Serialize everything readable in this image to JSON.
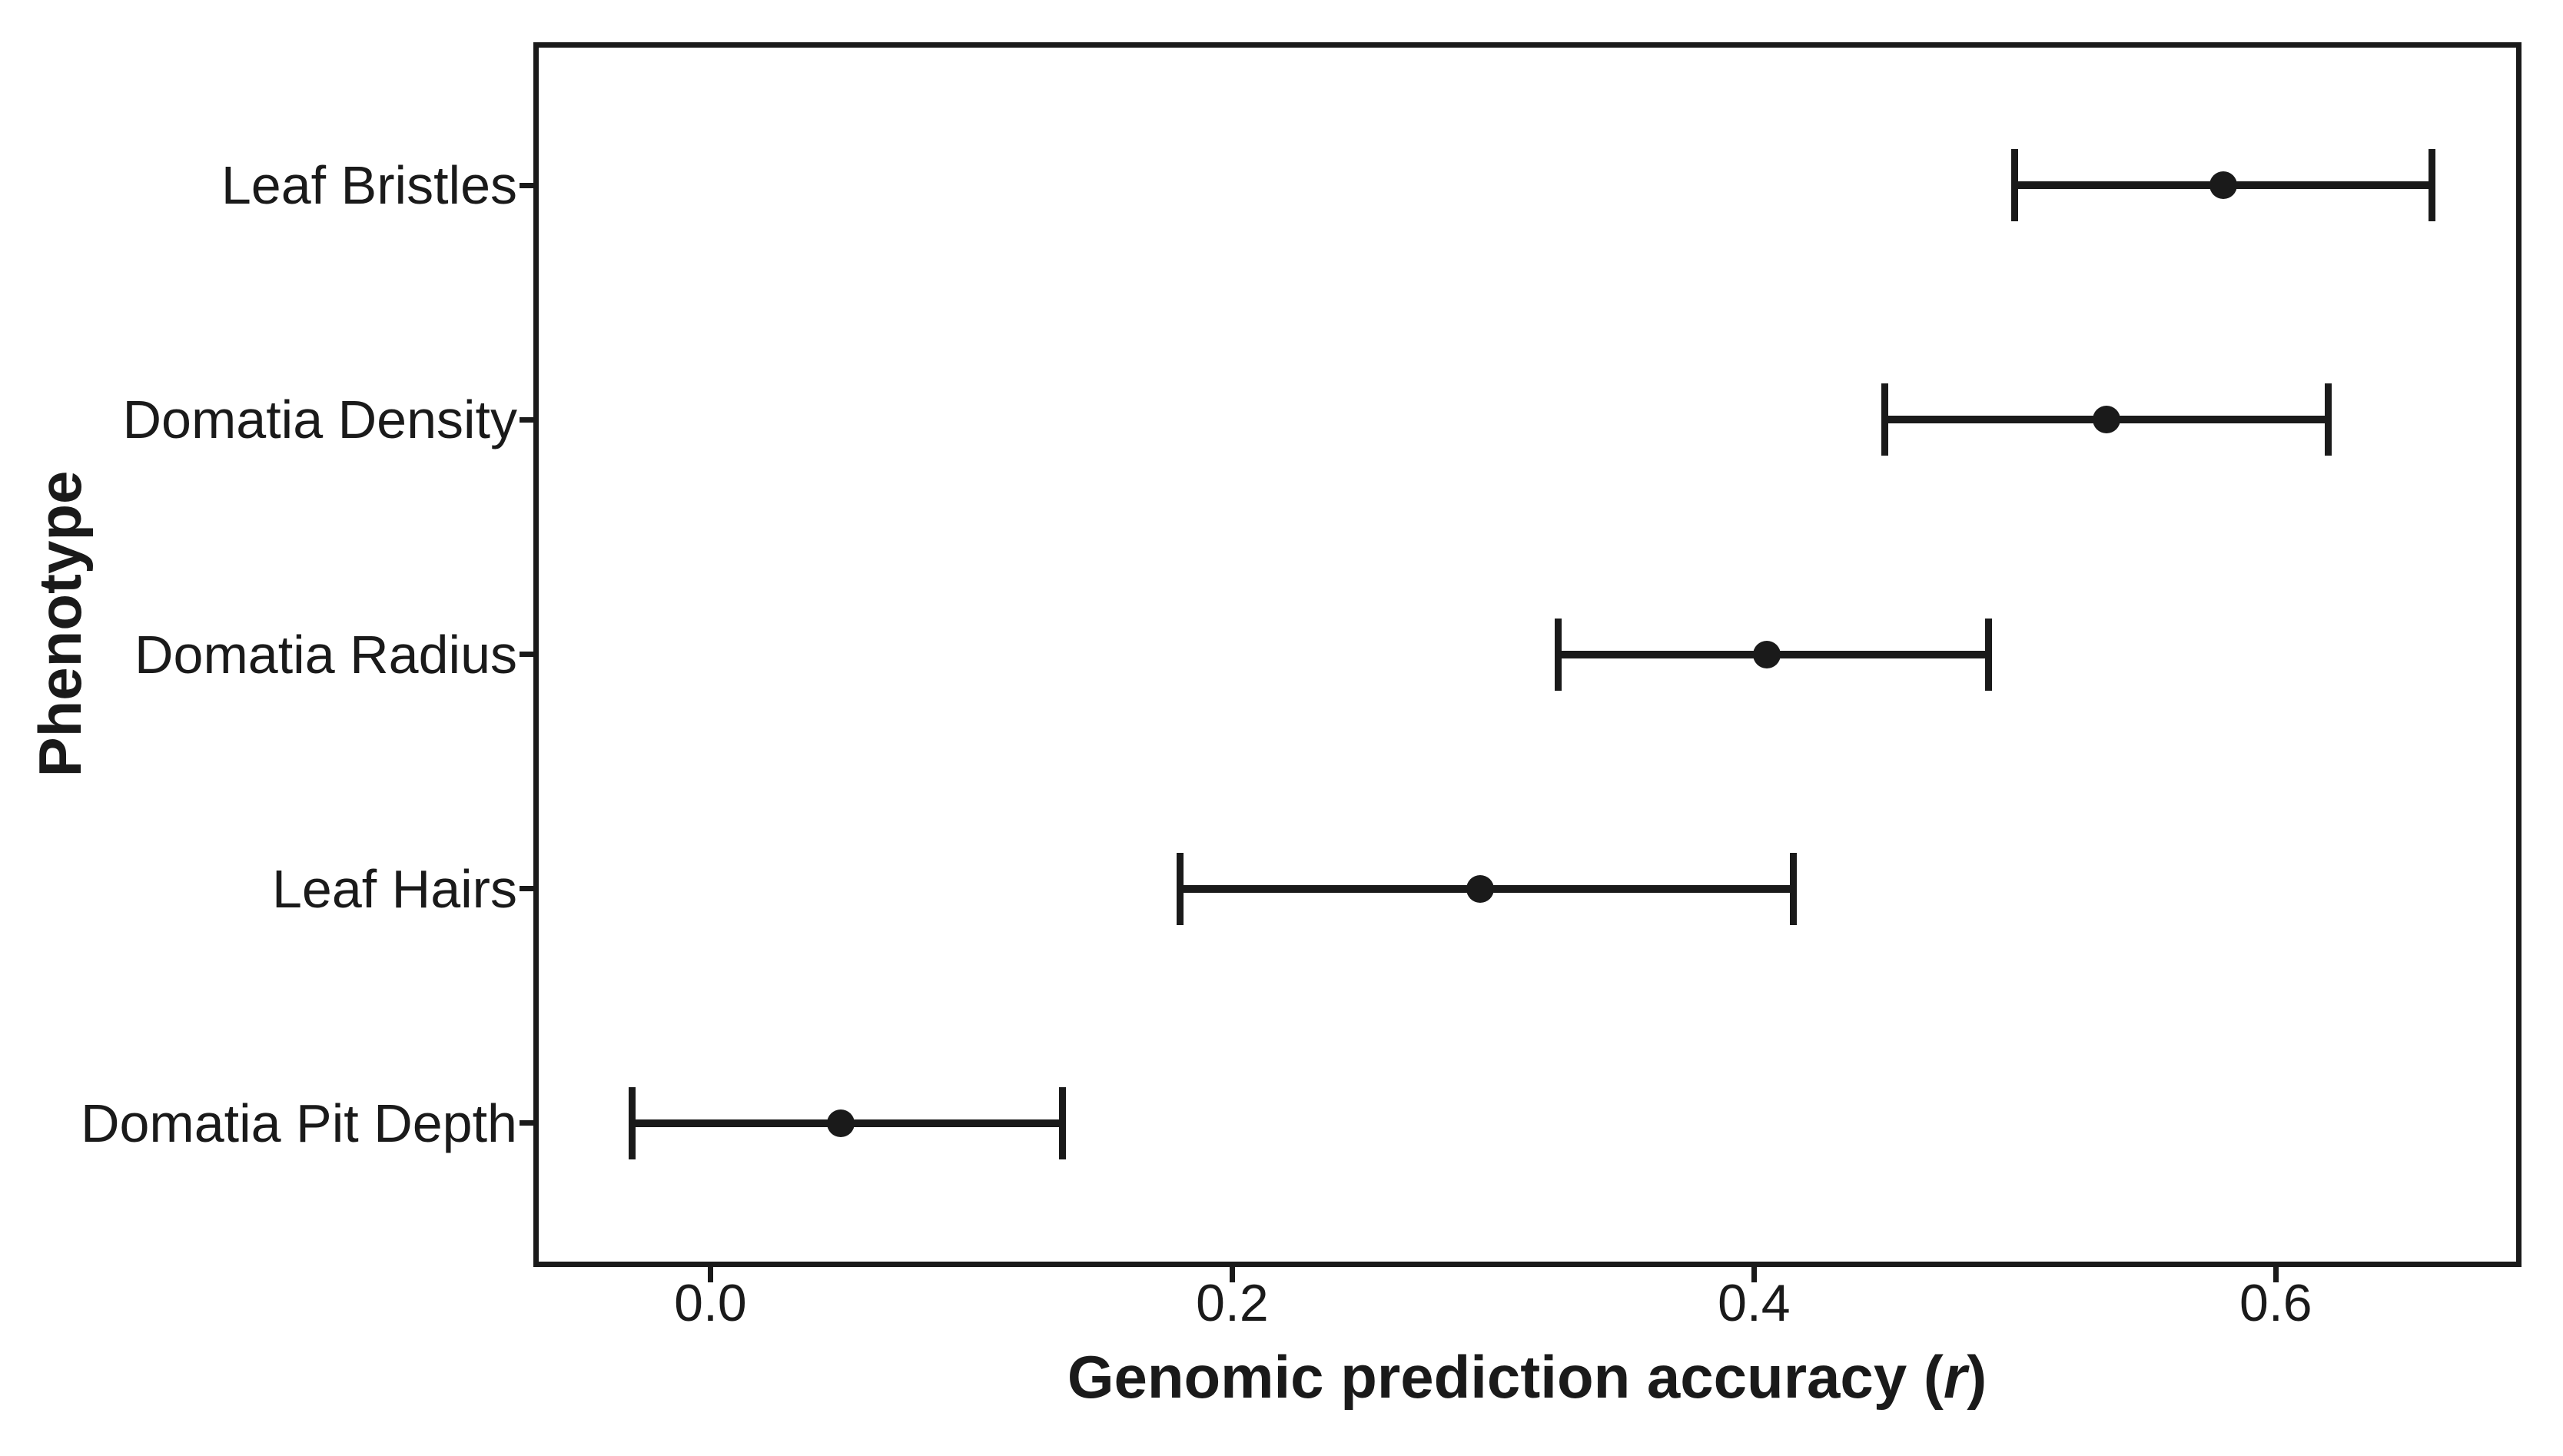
{
  "figure": {
    "background_color": "#ffffff",
    "line_color": "#1a1a1a",
    "point_color": "#1a1a1a"
  },
  "chart_data": {
    "type": "scatter",
    "subtype": "horizontal-dot-plot-with-error-bars",
    "title": "",
    "xlabel": "Genomic prediction accuracy (r)",
    "xlabel_prefix": "Genomic prediction accuracy (",
    "xlabel_italic": "r",
    "xlabel_suffix": ")",
    "ylabel": "Phenotype",
    "xlim": [
      -0.067,
      0.693
    ],
    "xticks": [
      0.0,
      0.2,
      0.4,
      0.6
    ],
    "xtick_labels": [
      "0.0",
      "0.2",
      "0.4",
      "0.6"
    ],
    "grid": false,
    "legend": false,
    "categories": [
      "Leaf Bristles",
      "Domatia Density",
      "Domatia Radius",
      "Leaf Hairs",
      "Domatia Pit Depth"
    ],
    "series": [
      {
        "name": "Genomic prediction accuracy",
        "points": [
          {
            "category": "Leaf Bristles",
            "value": 0.58,
            "ci_low": 0.5,
            "ci_high": 0.66
          },
          {
            "category": "Domatia Density",
            "value": 0.535,
            "ci_low": 0.45,
            "ci_high": 0.62
          },
          {
            "category": "Domatia Radius",
            "value": 0.405,
            "ci_low": 0.325,
            "ci_high": 0.49
          },
          {
            "category": "Leaf Hairs",
            "value": 0.295,
            "ci_low": 0.18,
            "ci_high": 0.415
          },
          {
            "category": "Domatia Pit Depth",
            "value": 0.05,
            "ci_low": -0.03,
            "ci_high": 0.135
          }
        ]
      }
    ]
  }
}
